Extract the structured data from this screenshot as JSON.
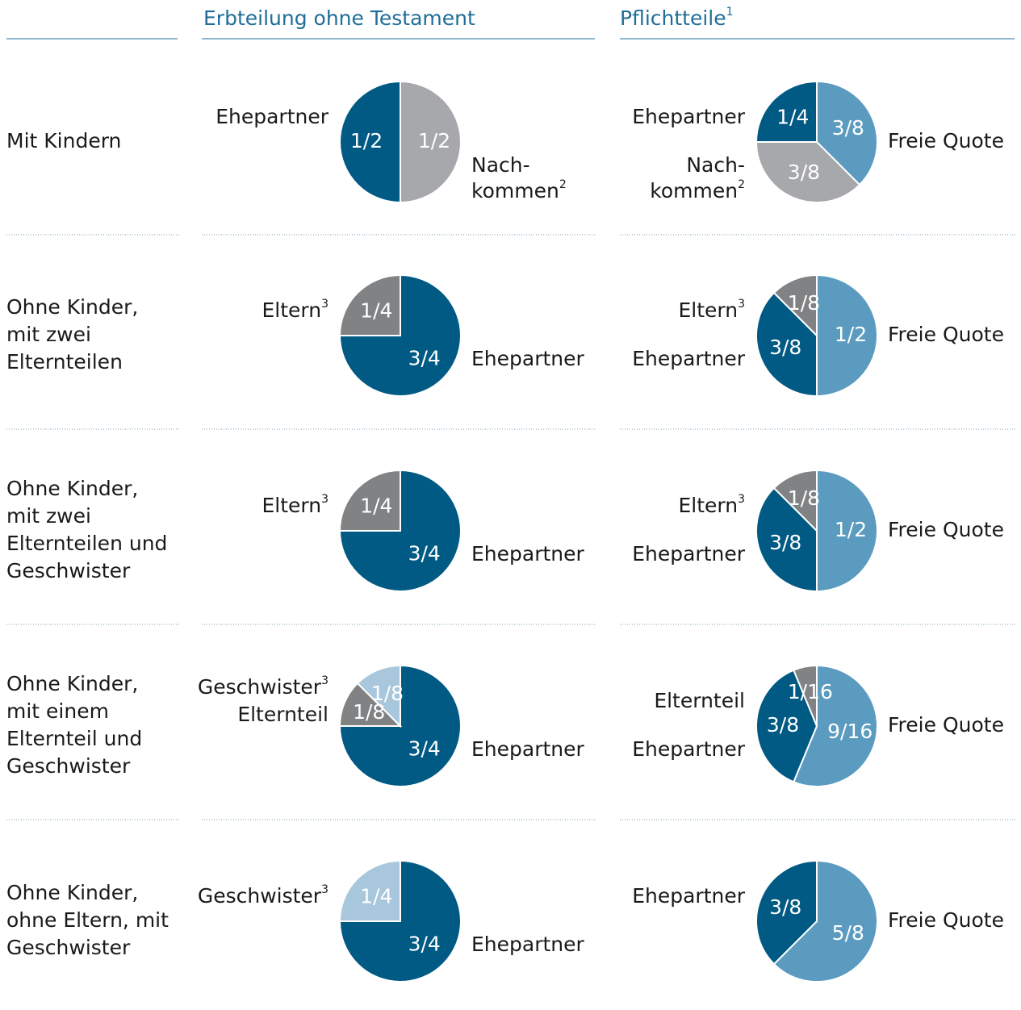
{
  "columns": [
    {
      "title": "Erbteilung ohne Testament"
    },
    {
      "title": "Pflichtteile",
      "footnote": "1"
    }
  ],
  "rows": [
    {
      "label": [
        "Mit Kindern"
      ],
      "charts": [
        {
          "type": "pie",
          "slices": [
            {
              "name": [
                "Nach-",
                "kommen"
              ],
              "footnote": "2",
              "value": 0.5,
              "value_label": "1/2",
              "color": "#a7a8ab"
            },
            {
              "name": [
                "Ehepartner"
              ],
              "value": 0.5,
              "value_label": "1/2",
              "color": "#005a84"
            }
          ]
        },
        {
          "type": "pie",
          "slices": [
            {
              "name": [
                "Freie Quote"
              ],
              "value": 0.375,
              "value_label": "3/8",
              "color": "#5a9bbf"
            },
            {
              "name": [
                "Nach-",
                "kommen"
              ],
              "footnote": "2",
              "value": 0.375,
              "value_label": "3/8",
              "color": "#a7a8ab"
            },
            {
              "name": [
                "Ehepartner"
              ],
              "value": 0.25,
              "value_label": "1/4",
              "color": "#005a84"
            }
          ]
        }
      ]
    },
    {
      "label": [
        "Ohne Kinder,",
        "mit zwei",
        "Elternteilen"
      ],
      "charts": [
        {
          "type": "pie",
          "slices": [
            {
              "name": [
                "Ehepartner"
              ],
              "value": 0.75,
              "value_label": "3/4",
              "color": "#005a84"
            },
            {
              "name": [
                "Eltern"
              ],
              "footnote": "3",
              "value": 0.25,
              "value_label": "1/4",
              "color": "#818284"
            }
          ]
        },
        {
          "type": "pie",
          "slices": [
            {
              "name": [
                "Freie Quote"
              ],
              "value": 0.5,
              "value_label": "1/2",
              "color": "#5a9bbf"
            },
            {
              "name": [
                "Ehepartner"
              ],
              "value": 0.375,
              "value_label": "3/8",
              "color": "#005a84"
            },
            {
              "name": [
                "Eltern"
              ],
              "footnote": "3",
              "value": 0.125,
              "value_label": "1/8",
              "color": "#818284"
            }
          ]
        }
      ]
    },
    {
      "label": [
        "Ohne Kinder,",
        "mit zwei",
        "Elternteilen und",
        "Geschwister"
      ],
      "charts": [
        {
          "type": "pie",
          "slices": [
            {
              "name": [
                "Ehepartner"
              ],
              "value": 0.75,
              "value_label": "3/4",
              "color": "#005a84"
            },
            {
              "name": [
                "Eltern"
              ],
              "footnote": "3",
              "value": 0.25,
              "value_label": "1/4",
              "color": "#818284"
            }
          ]
        },
        {
          "type": "pie",
          "slices": [
            {
              "name": [
                "Freie Quote"
              ],
              "value": 0.5,
              "value_label": "1/2",
              "color": "#5a9bbf"
            },
            {
              "name": [
                "Ehepartner"
              ],
              "value": 0.375,
              "value_label": "3/8",
              "color": "#005a84"
            },
            {
              "name": [
                "Eltern"
              ],
              "footnote": "3",
              "value": 0.125,
              "value_label": "1/8",
              "color": "#818284"
            }
          ]
        }
      ]
    },
    {
      "label": [
        "Ohne Kinder,",
        "mit einem",
        "Elternteil und",
        "Geschwister"
      ],
      "charts": [
        {
          "type": "pie",
          "slices": [
            {
              "name": [
                "Ehepartner"
              ],
              "value": 0.75,
              "value_label": "3/4",
              "color": "#005a84"
            },
            {
              "name": [
                "Elternteil"
              ],
              "value": 0.125,
              "value_label": "1/8",
              "color": "#818284"
            },
            {
              "name": [
                "Geschwister"
              ],
              "footnote": "3",
              "value": 0.125,
              "value_label": "1/8",
              "color": "#a9c7dc"
            }
          ]
        },
        {
          "type": "pie",
          "slices": [
            {
              "name": [
                "Freie Quote"
              ],
              "value": 0.5625,
              "value_label": "9/16",
              "color": "#5a9bbf"
            },
            {
              "name": [
                "Ehepartner"
              ],
              "value": 0.375,
              "value_label": "3/8",
              "color": "#005a84"
            },
            {
              "name": [
                "Elternteil"
              ],
              "value": 0.0625,
              "value_label": "1/16",
              "color": "#818284"
            }
          ]
        }
      ]
    },
    {
      "label": [
        "Ohne Kinder,",
        "ohne Eltern, mit",
        "Geschwister"
      ],
      "charts": [
        {
          "type": "pie",
          "slices": [
            {
              "name": [
                "Ehepartner"
              ],
              "value": 0.75,
              "value_label": "3/4",
              "color": "#005a84"
            },
            {
              "name": [
                "Geschwister"
              ],
              "footnote": "3",
              "value": 0.25,
              "value_label": "1/4",
              "color": "#a9c7dc"
            }
          ]
        },
        {
          "type": "pie",
          "slices": [
            {
              "name": [
                "Freie Quote"
              ],
              "value": 0.625,
              "value_label": "5/8",
              "color": "#5a9bbf"
            },
            {
              "name": [
                "Ehepartner"
              ],
              "value": 0.375,
              "value_label": "3/8",
              "color": "#005a84"
            }
          ]
        }
      ]
    }
  ]
}
